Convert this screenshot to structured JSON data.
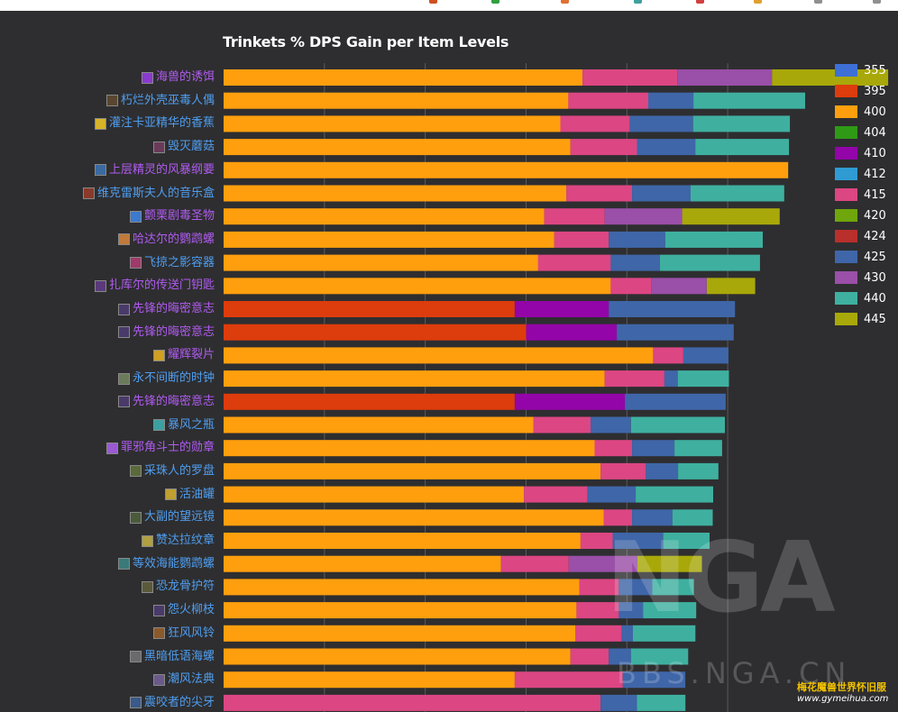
{
  "colors": {
    "background": "#2e2e30",
    "grid": "#5a5a5c",
    "title": "#ffffff",
    "label_blue": "#4f9ef0",
    "label_purple": "#b05bf0"
  },
  "chart_data": {
    "type": "bar",
    "orientation": "horizontal",
    "stacked": true,
    "title": "Trinkets % DPS Gain per Item Levels",
    "xlabel": "",
    "ylabel": "",
    "xlim": [
      0,
      14.8
    ],
    "grid": true,
    "legend_position": "right",
    "legend": [
      {
        "label": "355",
        "color": "#3d6fd6"
      },
      {
        "label": "395",
        "color": "#dd3c0d"
      },
      {
        "label": "400",
        "color": "#ff9f0e"
      },
      {
        "label": "404",
        "color": "#2f9a16"
      },
      {
        "label": "410",
        "color": "#9305a8"
      },
      {
        "label": "412",
        "color": "#2f9bd2"
      },
      {
        "label": "415",
        "color": "#dc4683"
      },
      {
        "label": "420",
        "color": "#6ea60c"
      },
      {
        "label": "424",
        "color": "#b82f2b"
      },
      {
        "label": "425",
        "color": "#3f66a8"
      },
      {
        "label": "430",
        "color": "#9a4fa8"
      },
      {
        "label": "440",
        "color": "#3fb0a0"
      },
      {
        "label": "445",
        "color": "#a8a80a"
      }
    ],
    "categories": [
      {
        "label": "海兽的诱饵",
        "label_color": "#b05bf0",
        "icon_color": "#8a3ad0"
      },
      {
        "label": "朽烂外壳巫毒人偶",
        "label_color": "#4f9ef0",
        "icon_color": "#5a4630"
      },
      {
        "label": "灌注卡亚精华的香蕉",
        "label_color": "#4f9ef0",
        "icon_color": "#d6b52a"
      },
      {
        "label": "毁灭蘑菇",
        "label_color": "#4f9ef0",
        "icon_color": "#6b3a5a"
      },
      {
        "label": "上层精灵的风暴纲要",
        "label_color": "#b05bf0",
        "icon_color": "#3a6aa0"
      },
      {
        "label": "维克雷斯夫人的音乐盒",
        "label_color": "#4f9ef0",
        "icon_color": "#8a3a2a"
      },
      {
        "label": "颤栗剧毒圣物",
        "label_color": "#b05bf0",
        "icon_color": "#3a7ad0"
      },
      {
        "label": "哈达尔的鹦鹉螺",
        "label_color": "#b05bf0",
        "icon_color": "#c07a3a"
      },
      {
        "label": "飞掠之影容器",
        "label_color": "#4f9ef0",
        "icon_color": "#a03a6a"
      },
      {
        "label": "扎库尔的传送门钥匙",
        "label_color": "#b05bf0",
        "icon_color": "#5a3a7a"
      },
      {
        "label": "先锋的晦密意志",
        "label_color": "#b05bf0",
        "icon_color": "#4a3a6a"
      },
      {
        "label": "先锋的晦密意志",
        "label_color": "#b05bf0",
        "icon_color": "#4a3a6a"
      },
      {
        "label": "耀辉裂片",
        "label_color": "#b05bf0",
        "icon_color": "#d0a020"
      },
      {
        "label": "永不间断的时钟",
        "label_color": "#4f9ef0",
        "icon_color": "#6a7a5a"
      },
      {
        "label": "先锋的晦密意志",
        "label_color": "#b05bf0",
        "icon_color": "#4a3a6a"
      },
      {
        "label": "暴风之瓶",
        "label_color": "#4f9ef0",
        "icon_color": "#3aa0a0"
      },
      {
        "label": "罪邪角斗士的勋章",
        "label_color": "#b05bf0",
        "icon_color": "#9a5ad0"
      },
      {
        "label": "采珠人的罗盘",
        "label_color": "#4f9ef0",
        "icon_color": "#5a6a3a"
      },
      {
        "label": "活油罐",
        "label_color": "#4f9ef0",
        "icon_color": "#c0a030"
      },
      {
        "label": "大副的望远镜",
        "label_color": "#4f9ef0",
        "icon_color": "#4a5a3a"
      },
      {
        "label": "赞达拉纹章",
        "label_color": "#4f9ef0",
        "icon_color": "#b0a040"
      },
      {
        "label": "等效海能鹦鹉螺",
        "label_color": "#4f9ef0",
        "icon_color": "#3a7a7a"
      },
      {
        "label": "恐龙骨护符",
        "label_color": "#4f9ef0",
        "icon_color": "#5a5a3a"
      },
      {
        "label": "怨火柳枝",
        "label_color": "#4f9ef0",
        "icon_color": "#4a3a6a"
      },
      {
        "label": "狂风风铃",
        "label_color": "#4f9ef0",
        "icon_color": "#8a5a2a"
      },
      {
        "label": "黑暗低语海螺",
        "label_color": "#4f9ef0",
        "icon_color": "#6a6a6a"
      },
      {
        "label": "潮风法典",
        "label_color": "#4f9ef0",
        "icon_color": "#6a5a8a"
      },
      {
        "label": "震咬者的尖牙",
        "label_color": "#4f9ef0",
        "icon_color": "#3a5a8a"
      }
    ],
    "series_segments": [
      [
        {
          "ilvl": "400",
          "value": 8.9
        },
        {
          "ilvl": "415",
          "value": 2.35
        },
        {
          "ilvl": "430",
          "value": 2.35
        },
        {
          "ilvl": "445",
          "value": 2.88
        }
      ],
      [
        {
          "ilvl": "400",
          "value": 8.55
        },
        {
          "ilvl": "415",
          "value": 1.98
        },
        {
          "ilvl": "425",
          "value": 1.12
        },
        {
          "ilvl": "440",
          "value": 2.77
        }
      ],
      [
        {
          "ilvl": "400",
          "value": 8.35
        },
        {
          "ilvl": "415",
          "value": 1.72
        },
        {
          "ilvl": "425",
          "value": 1.57
        },
        {
          "ilvl": "440",
          "value": 2.4
        }
      ],
      [
        {
          "ilvl": "400",
          "value": 8.6
        },
        {
          "ilvl": "415",
          "value": 1.65
        },
        {
          "ilvl": "425",
          "value": 1.45
        },
        {
          "ilvl": "440",
          "value": 2.32
        }
      ],
      [
        {
          "ilvl": "400",
          "value": 14.0
        }
      ],
      [
        {
          "ilvl": "400",
          "value": 8.5
        },
        {
          "ilvl": "415",
          "value": 1.63
        },
        {
          "ilvl": "425",
          "value": 1.45
        },
        {
          "ilvl": "440",
          "value": 2.32
        }
      ],
      [
        {
          "ilvl": "400",
          "value": 7.95
        },
        {
          "ilvl": "415",
          "value": 1.5
        },
        {
          "ilvl": "430",
          "value": 1.92
        },
        {
          "ilvl": "445",
          "value": 2.42
        }
      ],
      [
        {
          "ilvl": "400",
          "value": 8.2
        },
        {
          "ilvl": "415",
          "value": 1.35
        },
        {
          "ilvl": "425",
          "value": 1.4
        },
        {
          "ilvl": "440",
          "value": 2.42
        }
      ],
      [
        {
          "ilvl": "400",
          "value": 7.8
        },
        {
          "ilvl": "415",
          "value": 1.8
        },
        {
          "ilvl": "425",
          "value": 1.22
        },
        {
          "ilvl": "440",
          "value": 2.48
        }
      ],
      [
        {
          "ilvl": "400",
          "value": 9.6
        },
        {
          "ilvl": "415",
          "value": 1.0
        },
        {
          "ilvl": "430",
          "value": 1.38
        },
        {
          "ilvl": "445",
          "value": 1.2
        }
      ],
      [
        {
          "ilvl": "395",
          "value": 7.22
        },
        {
          "ilvl": "410",
          "value": 2.33
        },
        {
          "ilvl": "425",
          "value": 3.13
        }
      ],
      [
        {
          "ilvl": "395",
          "value": 7.5
        },
        {
          "ilvl": "410",
          "value": 2.25
        },
        {
          "ilvl": "425",
          "value": 2.9
        }
      ],
      [
        {
          "ilvl": "400",
          "value": 10.65
        },
        {
          "ilvl": "415",
          "value": 0.75
        },
        {
          "ilvl": "425",
          "value": 1.12
        }
      ],
      [
        {
          "ilvl": "400",
          "value": 9.45
        },
        {
          "ilvl": "415",
          "value": 1.48
        },
        {
          "ilvl": "425",
          "value": 0.33
        },
        {
          "ilvl": "440",
          "value": 1.27
        }
      ],
      [
        {
          "ilvl": "395",
          "value": 7.22
        },
        {
          "ilvl": "410",
          "value": 2.73
        },
        {
          "ilvl": "425",
          "value": 2.5
        }
      ],
      [
        {
          "ilvl": "400",
          "value": 7.68
        },
        {
          "ilvl": "415",
          "value": 1.42
        },
        {
          "ilvl": "425",
          "value": 1.0
        },
        {
          "ilvl": "440",
          "value": 2.33
        }
      ],
      [
        {
          "ilvl": "400",
          "value": 9.2
        },
        {
          "ilvl": "415",
          "value": 0.93
        },
        {
          "ilvl": "425",
          "value": 1.05
        },
        {
          "ilvl": "440",
          "value": 1.18
        }
      ],
      [
        {
          "ilvl": "400",
          "value": 9.35
        },
        {
          "ilvl": "415",
          "value": 1.12
        },
        {
          "ilvl": "425",
          "value": 0.8
        },
        {
          "ilvl": "440",
          "value": 1.0
        }
      ],
      [
        {
          "ilvl": "400",
          "value": 7.45
        },
        {
          "ilvl": "415",
          "value": 1.57
        },
        {
          "ilvl": "425",
          "value": 1.2
        },
        {
          "ilvl": "440",
          "value": 1.92
        }
      ],
      [
        {
          "ilvl": "400",
          "value": 9.43
        },
        {
          "ilvl": "415",
          "value": 0.7
        },
        {
          "ilvl": "425",
          "value": 1.0
        },
        {
          "ilvl": "440",
          "value": 1.0
        }
      ],
      [
        {
          "ilvl": "400",
          "value": 8.85
        },
        {
          "ilvl": "415",
          "value": 0.8
        },
        {
          "ilvl": "425",
          "value": 1.25
        },
        {
          "ilvl": "440",
          "value": 1.15
        }
      ],
      [
        {
          "ilvl": "400",
          "value": 6.88
        },
        {
          "ilvl": "415",
          "value": 1.68
        },
        {
          "ilvl": "430",
          "value": 1.7
        },
        {
          "ilvl": "445",
          "value": 1.6
        }
      ],
      [
        {
          "ilvl": "400",
          "value": 8.82
        },
        {
          "ilvl": "415",
          "value": 0.98
        },
        {
          "ilvl": "425",
          "value": 0.83
        },
        {
          "ilvl": "440",
          "value": 1.03
        }
      ],
      [
        {
          "ilvl": "400",
          "value": 8.75
        },
        {
          "ilvl": "415",
          "value": 1.05
        },
        {
          "ilvl": "425",
          "value": 0.6
        },
        {
          "ilvl": "440",
          "value": 1.32
        }
      ],
      [
        {
          "ilvl": "400",
          "value": 8.72
        },
        {
          "ilvl": "415",
          "value": 1.15
        },
        {
          "ilvl": "425",
          "value": 0.28
        },
        {
          "ilvl": "440",
          "value": 1.55
        }
      ],
      [
        {
          "ilvl": "400",
          "value": 8.6
        },
        {
          "ilvl": "415",
          "value": 0.95
        },
        {
          "ilvl": "425",
          "value": 0.55
        },
        {
          "ilvl": "440",
          "value": 1.42
        }
      ],
      [
        {
          "ilvl": "400",
          "value": 7.22
        },
        {
          "ilvl": "415",
          "value": 2.68
        },
        {
          "ilvl": "425",
          "value": 1.55
        }
      ],
      [
        {
          "ilvl": "415",
          "value": 9.35
        },
        {
          "ilvl": "425",
          "value": 0.9
        },
        {
          "ilvl": "440",
          "value": 1.2
        }
      ]
    ]
  },
  "watermark": {
    "logo": "NGA",
    "site": "BBS.NGA.CN",
    "site2_line1": "梅花魔兽世界怀旧服",
    "site2_line2": "www.gymeihua.com"
  }
}
